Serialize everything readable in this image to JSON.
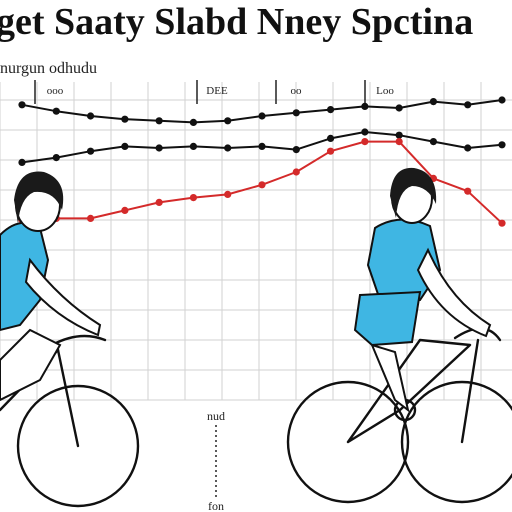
{
  "header": {
    "title": "get Saaty Slabd Nney Spctina",
    "subtitle": "nurgun odhudu"
  },
  "chart_data": {
    "type": "line",
    "title": "get Saaty Slabd Nney Spctina",
    "subtitle": "nurgun odhudu",
    "xlabel": "nud",
    "xlabel_bottom": "fon",
    "top_labels": [
      "ooo",
      "DEE",
      "oo",
      "Loo"
    ],
    "x": [
      0,
      1,
      2,
      3,
      4,
      5,
      6,
      7,
      8,
      9,
      10,
      11,
      12,
      13,
      14
    ],
    "xlim": [
      0,
      14
    ],
    "ylim": [
      0,
      10
    ],
    "grid": true,
    "series": [
      {
        "color": "#111111",
        "values": [
          9.2,
          8.8,
          8.5,
          8.3,
          8.2,
          8.1,
          8.2,
          8.5,
          8.7,
          8.9,
          9.1,
          9.0,
          9.4,
          9.2,
          9.5
        ]
      },
      {
        "color": "#111111",
        "values": [
          5.6,
          5.9,
          6.3,
          6.6,
          6.5,
          6.6,
          6.5,
          6.6,
          6.4,
          7.1,
          7.5,
          7.3,
          6.9,
          6.5,
          6.7
        ]
      },
      {
        "color": "#d42a2a",
        "values": [
          2.0,
          2.1,
          2.1,
          2.6,
          3.1,
          3.4,
          3.6,
          4.2,
          5.0,
          6.3,
          6.9,
          6.9,
          4.6,
          3.8,
          1.8
        ]
      }
    ]
  }
}
